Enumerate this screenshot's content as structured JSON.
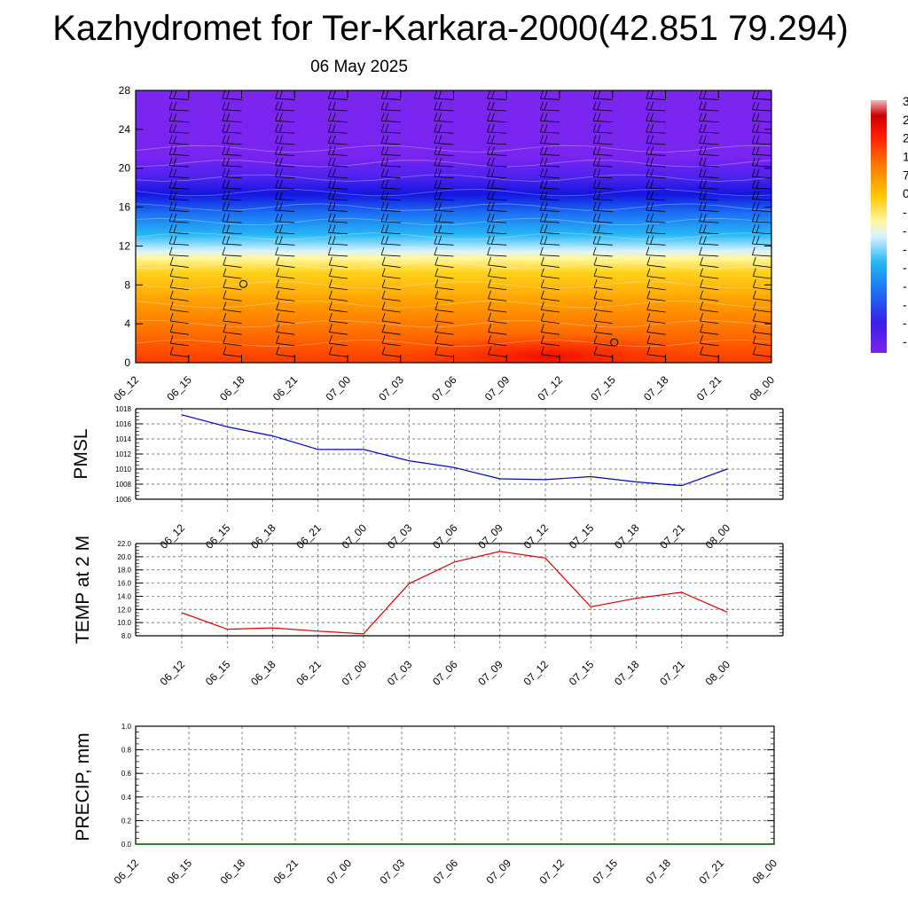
{
  "title": "Kazhydromet for Ter-Karkara-2000(42.851 79.294)",
  "subtitle": "06 May 2025",
  "time_labels": [
    "06_12",
    "06_15",
    "06_18",
    "06_21",
    "07_00",
    "07_03",
    "07_06",
    "07_09",
    "07_12",
    "07_15",
    "07_18",
    "07_21",
    "08_00"
  ],
  "colors": {
    "pmsl_line": "#0000cc",
    "temp_line": "#dd0000",
    "precip_line": "#006400",
    "wind_barb": "#000000"
  },
  "colorbar_labels": [
    "3",
    "2",
    "2",
    "1",
    "7",
    "0",
    "-",
    "-",
    "-",
    "-",
    "-",
    "-",
    "-",
    "-"
  ],
  "chart_data": [
    {
      "type": "heatmap",
      "name": "temperature-wind-profile",
      "x": [
        "06_12",
        "06_15",
        "06_18",
        "06_21",
        "07_00",
        "07_03",
        "07_06",
        "07_09",
        "07_12",
        "07_15",
        "07_18",
        "07_21",
        "08_00"
      ],
      "yticks": [
        0,
        4,
        8,
        12,
        16,
        20,
        24,
        28
      ],
      "ylim": [
        0,
        28
      ],
      "note_levels_color": "warm colours below ~12, cyan 12-16, blue 16-20, violet above 20",
      "wind_barbs": true
    },
    {
      "type": "line",
      "ylabel": "PMSL",
      "x": [
        "06_12",
        "06_15",
        "06_18",
        "06_21",
        "07_00",
        "07_03",
        "07_06",
        "07_09",
        "07_12",
        "07_15",
        "07_18",
        "07_21",
        "08_00"
      ],
      "values": [
        1017.2,
        1015.6,
        1014.4,
        1012.6,
        1012.6,
        1011.1,
        1010.2,
        1008.7,
        1008.6,
        1009.0,
        1008.3,
        1007.8,
        1010.0
      ],
      "ylim": [
        1006,
        1018
      ],
      "yticks": [
        1006,
        1008,
        1010,
        1012,
        1014,
        1016,
        1018
      ],
      "grid": true
    },
    {
      "type": "line",
      "ylabel": "TEMP at 2 M",
      "x": [
        "06_12",
        "06_15",
        "06_18",
        "06_21",
        "07_00",
        "07_03",
        "07_06",
        "07_09",
        "07_12",
        "07_15",
        "07_18",
        "07_21",
        "08_00"
      ],
      "values": [
        11.5,
        9.0,
        9.2,
        8.7,
        8.3,
        15.9,
        19.2,
        20.8,
        19.8,
        12.4,
        13.7,
        14.6,
        11.6
      ],
      "ylim": [
        8.0,
        22.0
      ],
      "yticks": [
        "8.0",
        "10.0",
        "12.0",
        "14.0",
        "16.0",
        "18.0",
        "20.0",
        "22.0"
      ],
      "grid": true
    },
    {
      "type": "line",
      "ylabel": "PRECIP, mm",
      "x": [
        "06_12",
        "06_15",
        "06_18",
        "06_21",
        "07_00",
        "07_03",
        "07_06",
        "07_09",
        "07_12",
        "07_15",
        "07_18",
        "07_21",
        "08_00"
      ],
      "values": [
        0,
        0,
        0,
        0,
        0,
        0,
        0,
        0,
        0,
        0,
        0,
        0,
        0
      ],
      "ylim": [
        0.0,
        1.0
      ],
      "yticks": [
        "0.0",
        "0.2",
        "0.4",
        "0.6",
        "0.8",
        "1.0"
      ],
      "grid": true
    }
  ]
}
